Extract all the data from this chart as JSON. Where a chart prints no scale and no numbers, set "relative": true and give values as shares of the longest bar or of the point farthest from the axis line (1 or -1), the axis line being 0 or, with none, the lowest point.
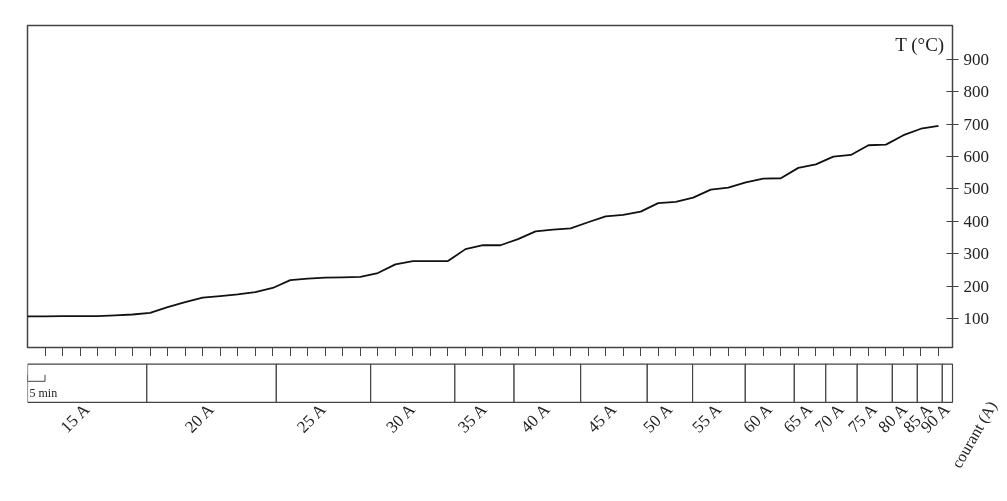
{
  "chart_data": [
    {
      "type": "line",
      "ylabel": "T (°C)",
      "categories": [
        null,
        null,
        null,
        null,
        null,
        null,
        null,
        null,
        null,
        null,
        null,
        null,
        null,
        null,
        null,
        null,
        null,
        null,
        null,
        null,
        null,
        null,
        null,
        null,
        null,
        null,
        null,
        null,
        null,
        null,
        null,
        null,
        null,
        null,
        null,
        null,
        null,
        null,
        null,
        null,
        null,
        null,
        null,
        null,
        null,
        null,
        null,
        null,
        null,
        null,
        null,
        null,
        null
      ],
      "series": [
        {
          "color": "#111111",
          "values": [
            106,
            106,
            107,
            107,
            107,
            109,
            112,
            117,
            135,
            150,
            164,
            169,
            174,
            181,
            194,
            218,
            223,
            226,
            227,
            228,
            240,
            267,
            277,
            277,
            277,
            314,
            326,
            326,
            345,
            369,
            374,
            378,
            397,
            415,
            420,
            430,
            456,
            460,
            473,
            498,
            504,
            520,
            532,
            533,
            565,
            576,
            600,
            605,
            635,
            637,
            666,
            686,
            695
          ]
        }
      ],
      "ylim": [
        10,
        1005
      ],
      "yticks": [
        100,
        200,
        300,
        400,
        500,
        600,
        700,
        800,
        900
      ],
      "tick_labels": "y",
      "line_style": "solid"
    },
    {
      "type": "bar",
      "orientation": "horizontal",
      "stacked": true,
      "relative": true,
      "xlabel": "courant (A)",
      "categories": [
        null
      ],
      "annotations": [
        "5 min"
      ],
      "series": [
        {
          "name": "15 A",
          "color": "#ffffff",
          "values": [
            0.129
          ]
        },
        {
          "name": "20 A",
          "color": "#ffffff",
          "values": [
            0.14
          ]
        },
        {
          "name": "25 A",
          "color": "#ffffff",
          "values": [
            0.102
          ]
        },
        {
          "name": "30 A",
          "color": "#ffffff",
          "values": [
            0.091
          ]
        },
        {
          "name": "35 A",
          "color": "#ffffff",
          "values": [
            0.064
          ]
        },
        {
          "name": "40 A",
          "color": "#ffffff",
          "values": [
            0.072
          ]
        },
        {
          "name": "45 A",
          "color": "#ffffff",
          "values": [
            0.072
          ]
        },
        {
          "name": "50 A",
          "color": "#ffffff",
          "values": [
            0.049
          ]
        },
        {
          "name": "55 A",
          "color": "#ffffff",
          "values": [
            0.057
          ]
        },
        {
          "name": "60 A",
          "color": "#ffffff",
          "values": [
            0.053
          ]
        },
        {
          "name": "65 A",
          "color": "#ffffff",
          "values": [
            0.034
          ]
        },
        {
          "name": "70 A",
          "color": "#ffffff",
          "values": [
            0.034
          ]
        },
        {
          "name": "75 A",
          "color": "#ffffff",
          "values": [
            0.038
          ]
        },
        {
          "name": "80 A",
          "color": "#ffffff",
          "values": [
            0.027
          ]
        },
        {
          "name": "85 A",
          "color": "#ffffff",
          "values": [
            0.027
          ]
        },
        {
          "name": "90 A",
          "color": "#ffffff",
          "values": [
            0.011
          ]
        }
      ]
    }
  ]
}
